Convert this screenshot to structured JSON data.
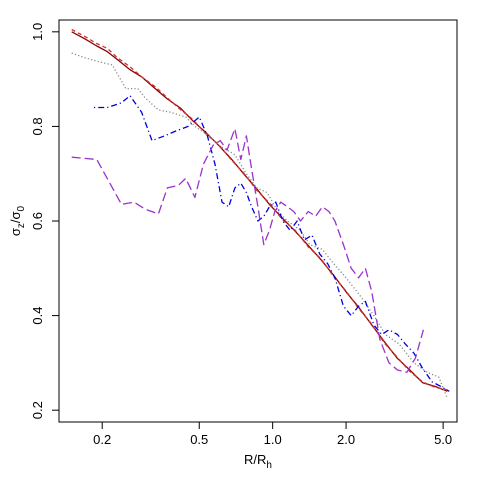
{
  "chart_data": {
    "type": "line",
    "title": "",
    "x_scale": "log",
    "xlim": [
      0.133,
      5.7
    ],
    "ylim": [
      0.175,
      1.025
    ],
    "xlabel": {
      "main": "R/R",
      "sub": "h"
    },
    "ylabel": {
      "p1": "σ",
      "s1": "z",
      "p2": "/σ",
      "s2": "0"
    },
    "x_ticks": [
      {
        "value": 0.2,
        "label": "0.2"
      },
      {
        "value": 0.5,
        "label": "0.5"
      },
      {
        "value": 1.0,
        "label": "1.0"
      },
      {
        "value": 2.0,
        "label": "2.0"
      },
      {
        "value": 5.0,
        "label": "5.0"
      }
    ],
    "y_ticks": [
      {
        "value": 0.2,
        "label": "0.2"
      },
      {
        "value": 0.4,
        "label": "0.4"
      },
      {
        "value": 0.6,
        "label": "0.6"
      },
      {
        "value": 0.8,
        "label": "0.8"
      },
      {
        "value": 1.0,
        "label": "1.0"
      }
    ],
    "grid": false,
    "series": [
      {
        "color": "#8b0000",
        "dash": "solid",
        "x": [
          0.15,
          0.17,
          0.19,
          0.21,
          0.23,
          0.26,
          0.29,
          0.33,
          0.37,
          0.42,
          0.47,
          0.53,
          0.6,
          0.68,
          0.76,
          0.86,
          0.97,
          1.1,
          1.24,
          1.4,
          1.58,
          1.78,
          2.0,
          2.25,
          2.55,
          2.87,
          3.24,
          3.65,
          4.12,
          4.65,
          5.2
        ],
        "y": [
          1.0,
          0.985,
          0.97,
          0.958,
          0.942,
          0.92,
          0.905,
          0.88,
          0.858,
          0.838,
          0.812,
          0.788,
          0.76,
          0.73,
          0.7,
          0.668,
          0.635,
          0.605,
          0.578,
          0.548,
          0.518,
          0.485,
          0.45,
          0.418,
          0.38,
          0.345,
          0.31,
          0.285,
          0.258,
          0.25,
          0.24
        ]
      },
      {
        "color": "#cc3333",
        "dash": "dashed",
        "x": [
          0.15,
          0.17,
          0.19,
          0.21,
          0.23,
          0.26,
          0.29,
          0.33,
          0.37,
          0.42,
          0.47,
          0.53,
          0.6,
          0.68,
          0.76,
          0.86,
          0.97,
          1.1,
          1.24,
          1.4,
          1.58,
          1.78,
          2.0,
          2.25,
          2.55,
          2.87,
          3.24,
          3.65,
          4.12,
          4.65,
          5.2
        ],
        "y": [
          1.005,
          0.99,
          0.975,
          0.965,
          0.946,
          0.926,
          0.905,
          0.884,
          0.86,
          0.835,
          0.815,
          0.785,
          0.762,
          0.728,
          0.702,
          0.665,
          0.638,
          0.602,
          0.58,
          0.545,
          0.52,
          0.482,
          0.452,
          0.415,
          0.382,
          0.342,
          0.312,
          0.282,
          0.26,
          0.248,
          0.243
        ]
      },
      {
        "color": "#888888",
        "dash": "dotted",
        "x": [
          0.15,
          0.17,
          0.2,
          0.22,
          0.25,
          0.28,
          0.3,
          0.34,
          0.38,
          0.44,
          0.48,
          0.55,
          0.6,
          0.7,
          0.78,
          0.86,
          0.95,
          1.05,
          1.15,
          1.3,
          1.42,
          1.6,
          1.78,
          2.0,
          2.3,
          2.6,
          2.9,
          3.3,
          3.8,
          4.3,
          4.8,
          5.2
        ],
        "y": [
          0.955,
          0.945,
          0.935,
          0.93,
          0.88,
          0.88,
          0.86,
          0.835,
          0.83,
          0.82,
          0.8,
          0.78,
          0.76,
          0.74,
          0.7,
          0.67,
          0.66,
          0.62,
          0.6,
          0.58,
          0.55,
          0.54,
          0.51,
          0.48,
          0.44,
          0.4,
          0.36,
          0.34,
          0.3,
          0.28,
          0.27,
          0.225
        ]
      },
      {
        "color": "#0000dd",
        "dash": "dotdash",
        "x": [
          0.185,
          0.21,
          0.24,
          0.26,
          0.29,
          0.32,
          0.36,
          0.4,
          0.45,
          0.5,
          0.54,
          0.58,
          0.62,
          0.66,
          0.7,
          0.74,
          0.78,
          0.82,
          0.87,
          0.92,
          0.97,
          1.03,
          1.1,
          1.18,
          1.26,
          1.35,
          1.45,
          1.56,
          1.68,
          1.8,
          1.95,
          2.1,
          2.25,
          2.4,
          2.6,
          2.8,
          3.0,
          3.25,
          3.5,
          3.8,
          4.1,
          4.5,
          4.9,
          5.3
        ],
        "y": [
          0.84,
          0.84,
          0.85,
          0.865,
          0.83,
          0.77,
          0.78,
          0.79,
          0.8,
          0.82,
          0.78,
          0.72,
          0.64,
          0.63,
          0.67,
          0.68,
          0.66,
          0.63,
          0.6,
          0.61,
          0.63,
          0.64,
          0.6,
          0.58,
          0.6,
          0.56,
          0.57,
          0.53,
          0.51,
          0.48,
          0.42,
          0.4,
          0.42,
          0.43,
          0.38,
          0.36,
          0.37,
          0.36,
          0.34,
          0.32,
          0.29,
          0.26,
          0.25,
          0.24
        ]
      },
      {
        "color": "#9933cc",
        "dash": "longdash",
        "x": [
          0.15,
          0.19,
          0.24,
          0.27,
          0.3,
          0.34,
          0.37,
          0.41,
          0.44,
          0.48,
          0.52,
          0.57,
          0.61,
          0.65,
          0.7,
          0.74,
          0.78,
          0.82,
          0.87,
          0.92,
          0.97,
          1.02,
          1.08,
          1.15,
          1.22,
          1.3,
          1.4,
          1.5,
          1.6,
          1.7,
          1.8,
          1.95,
          2.1,
          2.25,
          2.4,
          2.55,
          2.75,
          3.0,
          3.25,
          3.55,
          3.85,
          4.15
        ],
        "y": [
          0.735,
          0.73,
          0.635,
          0.64,
          0.625,
          0.615,
          0.67,
          0.675,
          0.69,
          0.65,
          0.72,
          0.76,
          0.77,
          0.75,
          0.795,
          0.73,
          0.78,
          0.71,
          0.63,
          0.55,
          0.58,
          0.62,
          0.64,
          0.63,
          0.62,
          0.6,
          0.62,
          0.61,
          0.63,
          0.62,
          0.6,
          0.55,
          0.5,
          0.48,
          0.5,
          0.45,
          0.35,
          0.3,
          0.285,
          0.28,
          0.31,
          0.37
        ]
      }
    ]
  }
}
